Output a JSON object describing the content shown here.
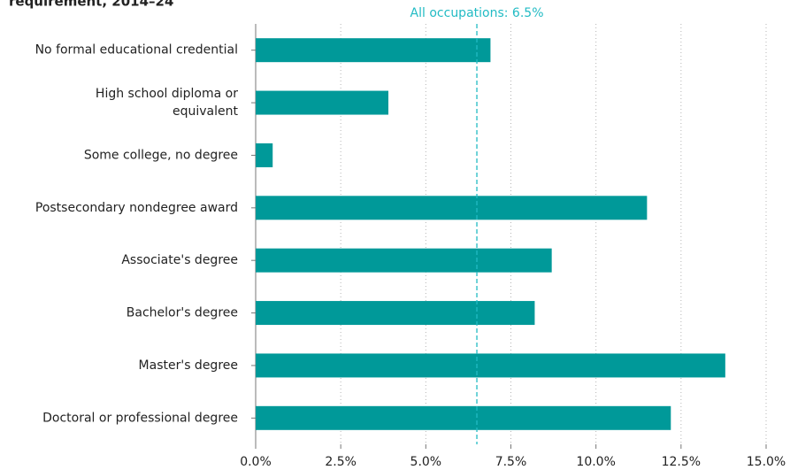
{
  "chart_data": {
    "type": "barh",
    "title": "requirement, 2014–24",
    "categories": [
      "No formal educational credential",
      "High school diploma or equivalent",
      "Some college, no degree",
      "Postsecondary nondegree award",
      "Associate's degree",
      "Bachelor's degree",
      "Master's degree",
      "Doctoral or professional degree"
    ],
    "values": [
      6.9,
      3.9,
      0.5,
      11.5,
      8.7,
      8.2,
      13.8,
      12.2
    ],
    "color": "#009999",
    "xlim": [
      0,
      15
    ],
    "xticks": [
      {
        "value": 0,
        "label": "0.0%"
      },
      {
        "value": 2.5,
        "label": "2.5%"
      },
      {
        "value": 5,
        "label": "5.0%"
      },
      {
        "value": 7.5,
        "label": "7.5%"
      },
      {
        "value": 10,
        "label": "10.0%"
      },
      {
        "value": 12.5,
        "label": "12.5%"
      },
      {
        "value": 15,
        "label": "15.0%"
      }
    ],
    "grid": true,
    "reference_line": {
      "value": 6.5,
      "label": "All occupations: 6.5%",
      "color": "#22bbc4"
    }
  }
}
